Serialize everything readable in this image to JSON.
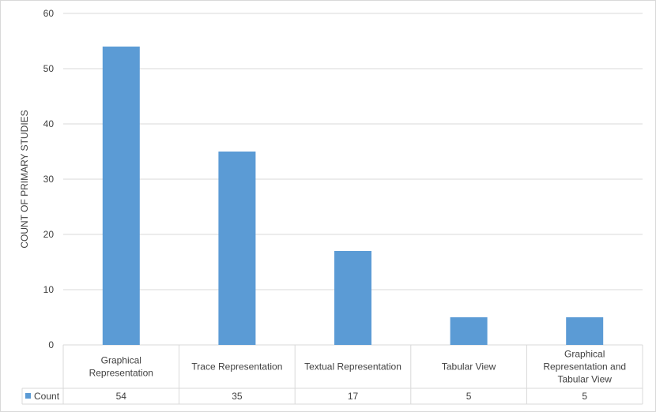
{
  "chart_data": {
    "type": "bar",
    "ylabel": "COUNT OF PRIMARY STUDIES",
    "ylim": [
      0,
      60
    ],
    "yticks": [
      0,
      10,
      20,
      30,
      40,
      50,
      60
    ],
    "grid": true,
    "categories": [
      [
        "Graphical",
        "Representation"
      ],
      [
        "Trace Representation"
      ],
      [
        "Textual Representation"
      ],
      [
        "Tabular View"
      ],
      [
        "Graphical",
        "Representation and",
        "Tabular View"
      ]
    ],
    "series": [
      {
        "name": "Count",
        "values": [
          54,
          35,
          17,
          5,
          5
        ]
      }
    ],
    "data_table": true,
    "colors": {
      "bar": "#5b9bd5",
      "grid": "#d9d9d9",
      "text": "#404040"
    }
  }
}
